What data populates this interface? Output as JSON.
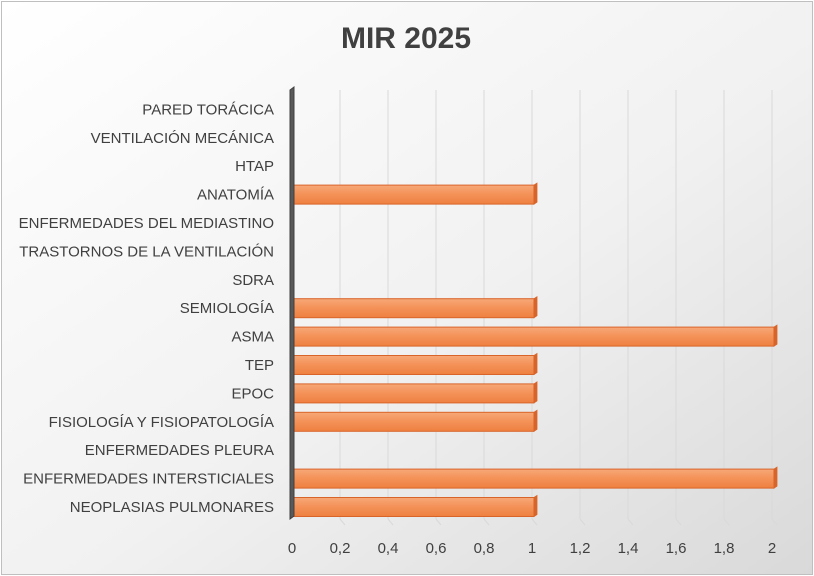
{
  "chart_data": {
    "type": "bar",
    "orientation": "horizontal",
    "title": "MIR 2025",
    "xlabel": "",
    "ylabel": "",
    "categories": [
      "NEOPLASIAS PULMONARES",
      "ENFERMEDADES INTERSTICIALES",
      "ENFERMEDADES PLEURA",
      "FISIOLOGÍA Y FISIOPATOLOGÍA",
      "EPOC",
      "TEP",
      "ASMA",
      "SEMIOLOGÍA",
      "SDRA",
      "TRASTORNOS DE LA VENTILACIÓN",
      "ENFERMEDADES DEL MEDIASTINO",
      "ANATOMÍA",
      "HTAP",
      "VENTILACIÓN MECÁNICA",
      "PARED TORÁCICA"
    ],
    "values": [
      1,
      2,
      0,
      1,
      1,
      1,
      2,
      1,
      0,
      0,
      0,
      1,
      0,
      0,
      0
    ],
    "xlim": [
      0,
      2
    ],
    "x_ticks": [
      "0",
      "0,2",
      "0,4",
      "0,6",
      "0,8",
      "1",
      "1,2",
      "1,4",
      "1,6",
      "1,8",
      "2"
    ],
    "grid": true,
    "legend": "none",
    "bar_color": "#f4935a",
    "bar_edge_color": "#d9642a"
  }
}
